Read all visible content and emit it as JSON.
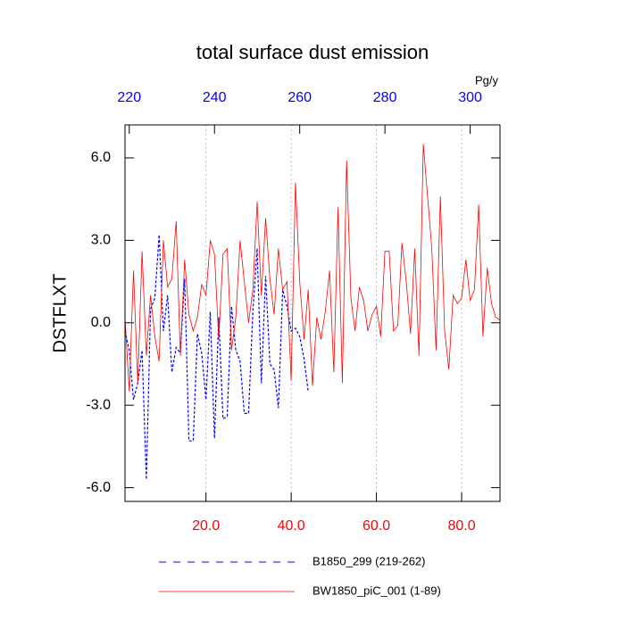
{
  "chart_data": {
    "type": "line",
    "title": "total surface dust emission",
    "ylabel": "DSTFLXT",
    "x2label": "Pg/y",
    "xlim": [
      1,
      89
    ],
    "xticks": [
      {
        "value": 20,
        "label": "20.0"
      },
      {
        "value": 40,
        "label": "40.0"
      },
      {
        "value": 60,
        "label": "60.0"
      },
      {
        "value": 80,
        "label": "80.0"
      }
    ],
    "x2lim": [
      219,
      307
    ],
    "x2ticks": [
      220,
      240,
      260,
      280,
      300
    ],
    "ylim": [
      -6.5,
      7.2
    ],
    "yticks": [
      {
        "value": -6,
        "label": "-6.0"
      },
      {
        "value": -3,
        "label": "-3.0"
      },
      {
        "value": 0,
        "label": "0.0"
      },
      {
        "value": 3,
        "label": "3.0"
      },
      {
        "value": 6,
        "label": "6.0"
      }
    ],
    "grid": true,
    "xtick_color": "#ff0000",
    "x2tick_color": "#0000ff",
    "series": [
      {
        "name": "B1850_299 (219-262)",
        "color": "#0000ff",
        "dash": true,
        "x": [
          1,
          2,
          3,
          4,
          5,
          6,
          7,
          8,
          9,
          10,
          11,
          12,
          13,
          14,
          15,
          16,
          17,
          18,
          19,
          20,
          21,
          22,
          23,
          24,
          25,
          26,
          27,
          28,
          29,
          30,
          31,
          32,
          33,
          34,
          35,
          36,
          37,
          38,
          39,
          40,
          41,
          42,
          43,
          44
        ],
        "values": [
          -0.3,
          -1.0,
          -2.8,
          -2.2,
          -1.0,
          -5.7,
          0.5,
          0.9,
          3.2,
          -0.3,
          1.0,
          -1.8,
          -0.9,
          -1.1,
          1.6,
          -4.3,
          -4.3,
          -0.4,
          -1.1,
          -2.8,
          0.4,
          -4.2,
          0.2,
          -3.5,
          -3.4,
          0.6,
          -1.0,
          -1.4,
          -3.3,
          -3.3,
          0.4,
          2.7,
          -2.2,
          1.7,
          -1.5,
          -1.7,
          -3.1,
          1.2,
          0.6,
          -0.3,
          -0.2,
          -0.5,
          -1.3,
          -2.5
        ]
      },
      {
        "name": "BW1850_piC_001 (1-89)",
        "color": "#ff0000",
        "dash": false,
        "x": [
          1,
          2,
          3,
          4,
          5,
          6,
          7,
          8,
          9,
          10,
          11,
          12,
          13,
          14,
          15,
          16,
          17,
          18,
          19,
          20,
          21,
          22,
          23,
          24,
          25,
          26,
          27,
          28,
          29,
          30,
          31,
          32,
          33,
          34,
          35,
          36,
          37,
          38,
          39,
          40,
          41,
          42,
          43,
          44,
          45,
          46,
          47,
          48,
          49,
          50,
          51,
          52,
          53,
          54,
          55,
          56,
          57,
          58,
          59,
          60,
          61,
          62,
          63,
          64,
          65,
          66,
          67,
          68,
          69,
          70,
          71,
          72,
          73,
          74,
          75,
          76,
          77,
          78,
          79,
          80,
          81,
          82,
          83,
          84,
          85,
          86,
          87,
          88,
          89
        ],
        "values": [
          0.2,
          -2.5,
          1.9,
          -2.2,
          2.6,
          -1.2,
          1.0,
          -0.5,
          -1.4,
          3.0,
          1.3,
          1.6,
          3.7,
          -1.2,
          2.3,
          0.3,
          -0.3,
          0.2,
          1.4,
          1.0,
          3.0,
          2.5,
          -0.6,
          2.5,
          2.7,
          -1.0,
          0.2,
          3.0,
          1.5,
          0.0,
          1.2,
          4.4,
          1.0,
          3.8,
          1.6,
          0.3,
          2.7,
          1.2,
          1.5,
          -2.1,
          5.1,
          1.5,
          -0.6,
          1.2,
          -2.3,
          0.2,
          -0.6,
          0.4,
          1.9,
          -1.8,
          4.2,
          -2.2,
          5.9,
          0.9,
          -0.3,
          1.3,
          0.8,
          -0.3,
          0.3,
          0.6,
          -0.5,
          2.6,
          2.6,
          -0.3,
          -0.1,
          2.9,
          1.5,
          -0.4,
          2.7,
          -1.2,
          6.5,
          4.6,
          2.7,
          -1.0,
          4.6,
          -0.3,
          -1.7,
          1.0,
          0.7,
          0.9,
          2.3,
          0.8,
          1.2,
          4.3,
          -0.5,
          2.0,
          0.7,
          0.2,
          0.1
        ]
      }
    ]
  }
}
